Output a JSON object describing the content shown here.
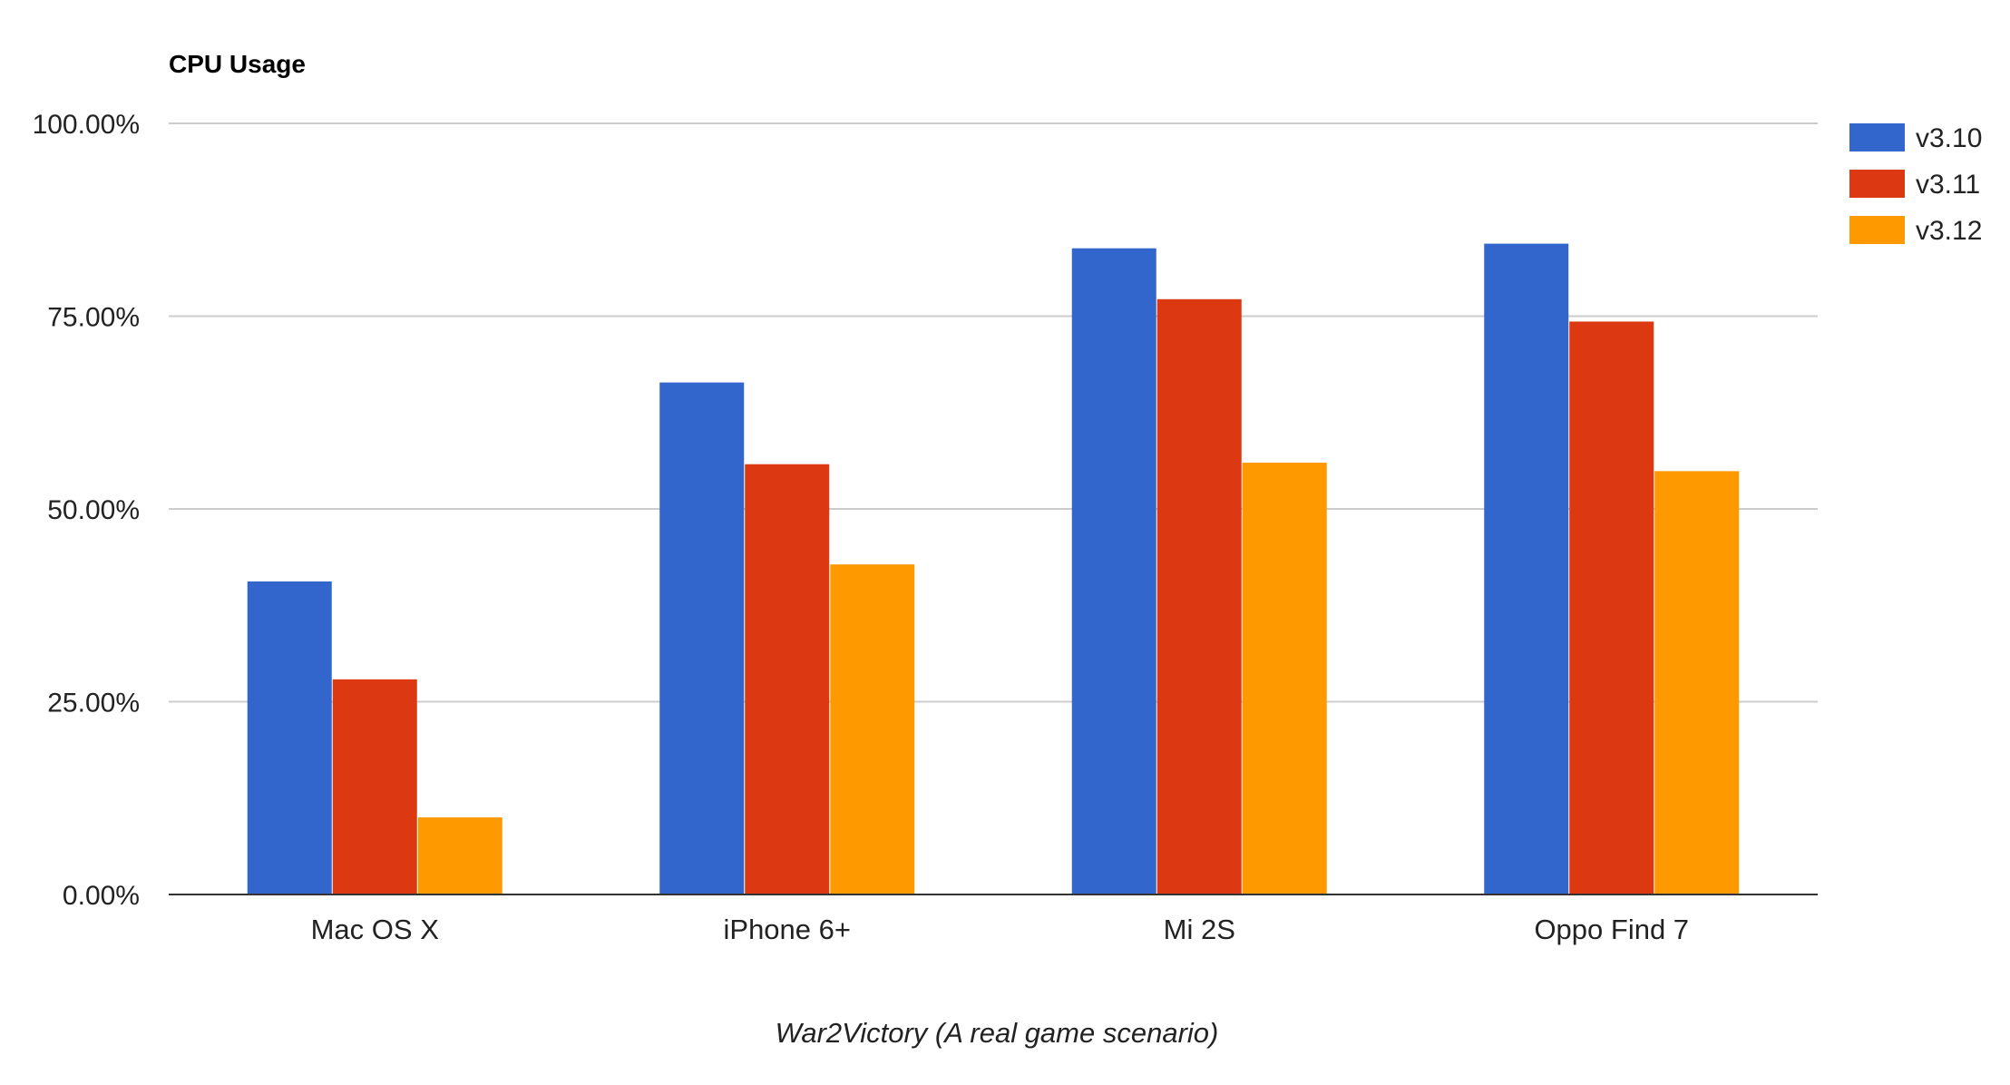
{
  "chart_data": {
    "type": "bar",
    "title": "CPU Usage",
    "xlabel": "War2Victory (A real game scenario)",
    "ylabel": "",
    "ylim": [
      0,
      100
    ],
    "yticks": [
      0,
      25,
      50,
      75,
      100
    ],
    "ytick_labels": [
      "0.00%",
      "25.00%",
      "50.00%",
      "75.00%",
      "100.00%"
    ],
    "grid": true,
    "legend_position": "right",
    "categories": [
      "Mac OS X",
      "iPhone 6+",
      "Mi 2S",
      "Oppo Find 7"
    ],
    "series": [
      {
        "name": "v3.10",
        "color": "#3366cc",
        "values": [
          40.6,
          66.4,
          83.8,
          84.4
        ]
      },
      {
        "name": "v3.11",
        "color": "#dc3912",
        "values": [
          27.9,
          55.8,
          77.2,
          74.3
        ]
      },
      {
        "name": "v3.12",
        "color": "#ff9900",
        "values": [
          10.0,
          42.8,
          56.0,
          54.9
        ]
      }
    ]
  }
}
